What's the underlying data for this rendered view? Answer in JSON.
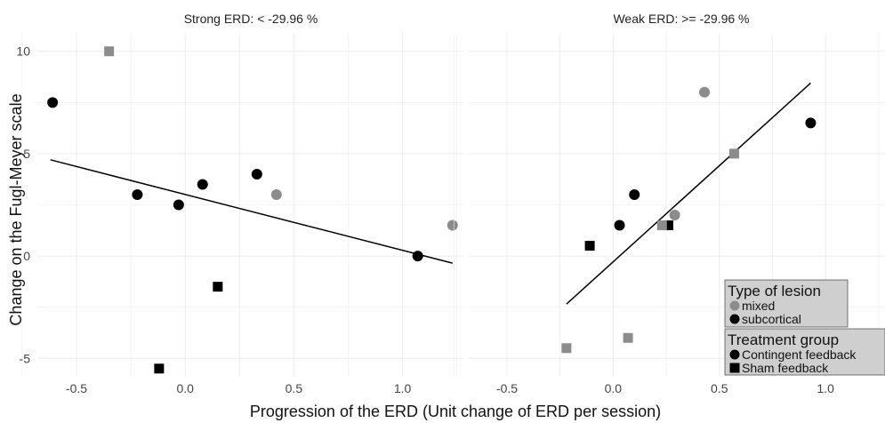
{
  "chart_data": {
    "type": "scatter",
    "xlabel": "Progression of the ERD (Unit change of ERD per session)",
    "ylabel": "Change on the Fugl-Meyer scale",
    "xlim": [
      -0.68,
      1.28
    ],
    "ylim": [
      -5.9,
      10.9
    ],
    "x_ticks": [
      "-0.5",
      "0.0",
      "0.5",
      "1.0"
    ],
    "x_tick_values": [
      -0.5,
      0.0,
      0.5,
      1.0
    ],
    "y_ticks": [
      "-5",
      "0",
      "5",
      "10"
    ],
    "y_tick_values": [
      -5,
      0,
      5,
      10
    ],
    "grid": true,
    "legend_position": "bottom-right",
    "colors": {
      "mixed": "#8c8c8c",
      "subcortical": "#000000",
      "line": "#000000",
      "grid": "#ececec"
    },
    "legends": [
      {
        "title": "Type of lesion",
        "items": [
          {
            "label": "mixed",
            "shape": "circle",
            "color": "#8c8c8c"
          },
          {
            "label": "subcortical",
            "shape": "circle",
            "color": "#000000"
          }
        ]
      },
      {
        "title": "Treatment group",
        "items": [
          {
            "label": "Contingent feedback",
            "shape": "circle",
            "color": "#000000"
          },
          {
            "label": "Sham feedback",
            "shape": "square",
            "color": "#000000"
          }
        ]
      }
    ],
    "panels": [
      {
        "title": "Strong ERD: < -29.96 %",
        "fit": {
          "x": [
            -0.62,
            1.23
          ],
          "y": [
            4.7,
            -0.35
          ]
        },
        "points": [
          {
            "x": -0.35,
            "y": 10,
            "lesion": "mixed",
            "group": "Sham feedback"
          },
          {
            "x": -0.61,
            "y": 7.5,
            "lesion": "subcortical",
            "group": "Contingent feedback"
          },
          {
            "x": -0.22,
            "y": 3,
            "lesion": "subcortical",
            "group": "Contingent feedback"
          },
          {
            "x": -0.03,
            "y": 2.5,
            "lesion": "subcortical",
            "group": "Contingent feedback"
          },
          {
            "x": 0.08,
            "y": 3.5,
            "lesion": "subcortical",
            "group": "Contingent feedback"
          },
          {
            "x": 0.33,
            "y": 4,
            "lesion": "subcortical",
            "group": "Contingent feedback"
          },
          {
            "x": 0.42,
            "y": 3,
            "lesion": "mixed",
            "group": "Contingent feedback"
          },
          {
            "x": 1.23,
            "y": 1.5,
            "lesion": "mixed",
            "group": "Contingent feedback"
          },
          {
            "x": 1.07,
            "y": 0,
            "lesion": "subcortical",
            "group": "Contingent feedback"
          },
          {
            "x": 0.15,
            "y": -1.5,
            "lesion": "subcortical",
            "group": "Sham feedback"
          },
          {
            "x": -0.12,
            "y": -5.5,
            "lesion": "subcortical",
            "group": "Sham feedback"
          }
        ]
      },
      {
        "title": "Weak ERD: >= -29.96 %",
        "fit": {
          "x": [
            -0.22,
            0.93
          ],
          "y": [
            -2.35,
            8.45
          ]
        },
        "points": [
          {
            "x": 0.43,
            "y": 8,
            "lesion": "mixed",
            "group": "Contingent feedback"
          },
          {
            "x": 0.93,
            "y": 6.5,
            "lesion": "subcortical",
            "group": "Contingent feedback"
          },
          {
            "x": 0.57,
            "y": 5,
            "lesion": "mixed",
            "group": "Sham feedback"
          },
          {
            "x": 0.1,
            "y": 3,
            "lesion": "subcortical",
            "group": "Contingent feedback"
          },
          {
            "x": 0.29,
            "y": 2,
            "lesion": "mixed",
            "group": "Contingent feedback"
          },
          {
            "x": 0.03,
            "y": 1.5,
            "lesion": "subcortical",
            "group": "Contingent feedback"
          },
          {
            "x": 0.26,
            "y": 1.5,
            "lesion": "subcortical",
            "group": "Sham feedback"
          },
          {
            "x": 0.23,
            "y": 1.5,
            "lesion": "mixed",
            "group": "Sham feedback"
          },
          {
            "x": -0.11,
            "y": 0.5,
            "lesion": "subcortical",
            "group": "Sham feedback"
          },
          {
            "x": 0.07,
            "y": -4,
            "lesion": "mixed",
            "group": "Sham feedback"
          },
          {
            "x": -0.22,
            "y": -4.5,
            "lesion": "mixed",
            "group": "Sham feedback"
          }
        ]
      }
    ]
  }
}
